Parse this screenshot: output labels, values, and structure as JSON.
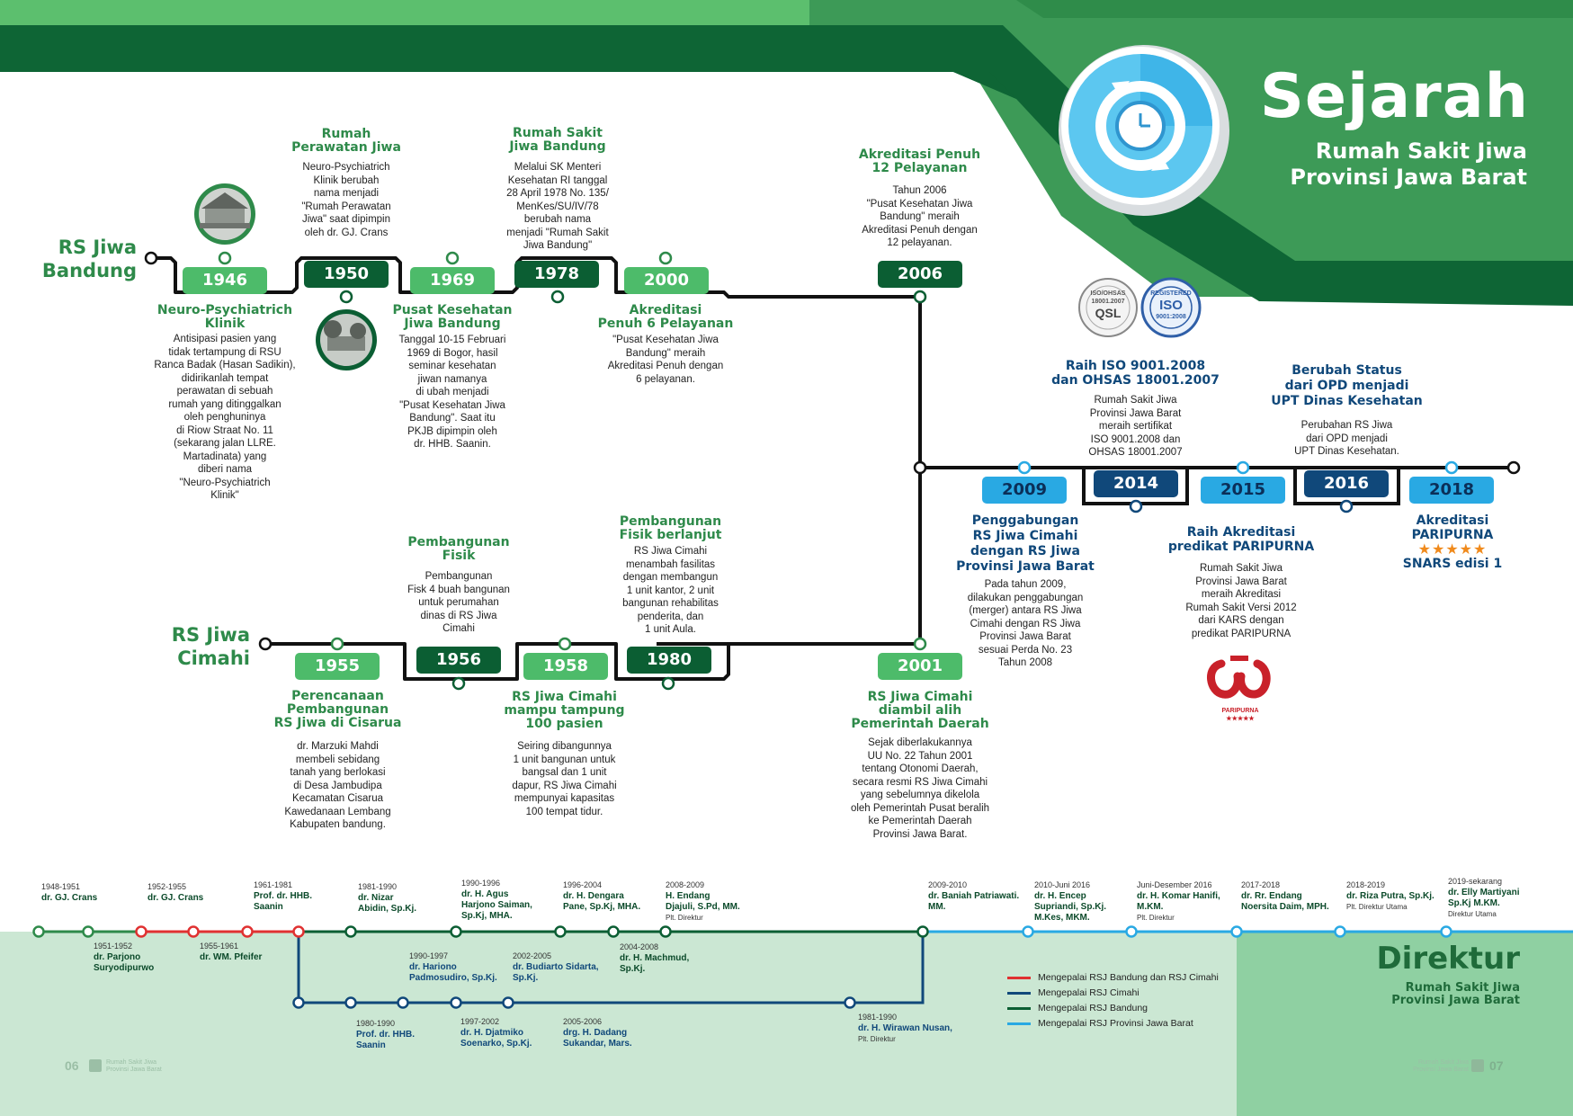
{
  "header": {
    "title": "Sejarah",
    "subtitle_1": "Rumah Sakit Jiwa",
    "subtitle_2": "Provinsi Jawa Barat"
  },
  "lines": {
    "bandung_1": "RS Jiwa",
    "bandung_2": "Bandung",
    "cimahi_1": "RS Jiwa",
    "cimahi_2": "Cimahi"
  },
  "colors": {
    "green_dark": "#0b5e33",
    "green_light": "#4dbb6a",
    "blue": "#29a9e3",
    "navy": "#10487a",
    "red": "#e03131"
  },
  "bandung_events": [
    {
      "year": "1946",
      "title_1": "Neuro-Psychiatrich",
      "title_2": "Klinik",
      "desc": [
        "Antisipasi pasien yang",
        "tidak tertampung di RSU",
        "Ranca Badak (Hasan Sadikin),",
        "didirikanlah tempat",
        "perawatan di sebuah",
        "rumah yang ditinggalkan",
        "oleh penghuninya",
        "di Riow Straat No. 11",
        "(sekarang jalan LLRE.",
        "Martadinata) yang",
        "diberi nama",
        "\"Neuro-Psychiatrich",
        "Klinik\""
      ]
    },
    {
      "year": "1950",
      "title_1": "Rumah",
      "title_2": "Perawatan Jiwa",
      "desc": [
        "Neuro-Psychiatrich",
        "Klinik berubah",
        "nama menjadi",
        "\"Rumah Perawatan",
        "Jiwa\" saat dipimpin",
        "oleh dr. GJ. Crans"
      ]
    },
    {
      "year": "1969",
      "title_1": "Pusat Kesehatan",
      "title_2": "Jiwa Bandung",
      "desc": [
        "Tanggal 10-15 Februari",
        "1969 di Bogor, hasil",
        "seminar kesehatan",
        "jiwan namanya",
        "di ubah menjadi",
        "\"Pusat Kesehatan Jiwa",
        "Bandung\". Saat itu",
        "PKJB dipimpin oleh",
        "dr. HHB. Saanin."
      ]
    },
    {
      "year": "1978",
      "title_1": "Rumah Sakit",
      "title_2": "Jiwa Bandung",
      "desc": [
        "Melalui SK Menteri",
        "Kesehatan RI tanggal",
        "28 April 1978 No. 135/",
        "MenKes/SU/IV/78",
        "berubah nama",
        "menjadi \"Rumah Sakit",
        "Jiwa Bandung\""
      ]
    },
    {
      "year": "2000",
      "title_1": "Akreditasi",
      "title_2": "Penuh 6 Pelayanan",
      "desc": [
        "\"Pusat Kesehatan Jiwa",
        "Bandung\" meraih",
        "Akreditasi Penuh dengan",
        "6 pelayanan."
      ]
    },
    {
      "year": "2006",
      "title_1": "Akreditasi Penuh",
      "title_2": "12 Pelayanan",
      "desc": [
        "Tahun 2006",
        "\"Pusat Kesehatan Jiwa",
        "Bandung\" meraih",
        "Akreditasi Penuh dengan",
        "12 pelayanan."
      ]
    }
  ],
  "cimahi_events": [
    {
      "year": "1955",
      "title_1": "Perencanaan",
      "title_2": "Pembangunan",
      "title_3": "RS Jiwa di Cisarua",
      "desc": [
        "dr. Marzuki Mahdi",
        "membeli sebidang",
        "tanah yang berlokasi",
        "di Desa Jambudipa",
        "Kecamatan Cisarua",
        "Kawedanaan Lembang",
        "Kabupaten bandung."
      ]
    },
    {
      "year": "1956",
      "title_1": "Pembangunan",
      "title_2": "Fisik",
      "desc": [
        "Pembangunan",
        "Fisk 4 buah bangunan",
        "untuk perumahan",
        "dinas di RS Jiwa",
        "Cimahi"
      ]
    },
    {
      "year": "1958",
      "title_1": "RS Jiwa Cimahi",
      "title_2": "mampu tampung",
      "title_3": "100 pasien",
      "desc": [
        "Seiring dibangunnya",
        "1 unit bangunan untuk",
        "bangsal dan 1 unit",
        "dapur, RS Jiwa Cimahi",
        "mempunyai kapasitas",
        "100 tempat tidur."
      ]
    },
    {
      "year": "1980",
      "title_1": "Pembangunan",
      "title_2": "Fisik berlanjut",
      "desc": [
        "RS Jiwa Cimahi",
        "menambah fasilitas",
        "dengan membangun",
        "1 unit kantor, 2 unit",
        "bangunan rehabilitas",
        "penderita, dan",
        "1 unit Aula."
      ]
    },
    {
      "year": "2001",
      "title_1": "RS Jiwa Cimahi",
      "title_2": "diambil alih",
      "title_3": "Pemerintah Daerah",
      "desc": [
        "Sejak diberlakukannya",
        "UU No. 22 Tahun 2001",
        "tentang Otonomi Daerah,",
        "secara resmi RS Jiwa Cimahi",
        "yang sebelumnya dikelola",
        "oleh Pemerintah Pusat beralih",
        "ke Pemerintah Daerah",
        "Provinsi Jawa Barat."
      ]
    }
  ],
  "provinsi_events": [
    {
      "year": "2009",
      "title_1": "Penggabungan",
      "title_2": "RS Jiwa Cimahi",
      "title_3": "dengan RS Jiwa",
      "title_4": "Provinsi Jawa Barat",
      "desc": [
        "Pada tahun 2009,",
        "dilakukan penggabungan",
        "(merger) antara RS Jiwa",
        "Cimahi dengan RS Jiwa",
        "Provinsi Jawa Barat",
        "sesuai Perda No. 23",
        "Tahun 2008"
      ]
    },
    {
      "year": "2014",
      "title_1": "Raih ISO 9001.2008",
      "title_2": "dan OHSAS 18001.2007",
      "desc": [
        "Rumah Sakit Jiwa",
        "Provinsi Jawa Barat",
        "meraih sertifikat",
        "ISO 9001.2008 dan",
        "OHSAS 18001.2007"
      ]
    },
    {
      "year": "2015",
      "title_1": "Raih Akreditasi",
      "title_2": "predikat PARIPURNA",
      "desc": [
        "Rumah Sakit Jiwa",
        "Provinsi Jawa Barat",
        "meraih Akreditasi",
        "Rumah Sakit Versi 2012",
        "dari KARS dengan",
        "predikat PARIPURNA"
      ]
    },
    {
      "year": "2016",
      "title_1": "Berubah Status",
      "title_2": "dari OPD menjadi",
      "title_3": "UPT Dinas Kesehatan",
      "desc": [
        "Perubahan RS Jiwa",
        "dari OPD menjadi",
        "UPT Dinas Kesehatan."
      ]
    },
    {
      "year": "2018",
      "title_1": "Akreditasi",
      "title_2": "PARIPURNA",
      "stars": "★★★★★",
      "title_3": "SNARS edisi 1"
    }
  ],
  "badges": {
    "qsl_1": "ISO/OHSAS",
    "qsl_2": "18001.2007",
    "qsl_3": "QSL",
    "iso_1": "REGISTERED",
    "iso_2": "ISO",
    "iso_3": "9001:2008",
    "paripurna": "PARIPURNA",
    "paripurna_stars": "★★★★★"
  },
  "directors_top": [
    {
      "period": "1948-1951",
      "name_1": "dr. GJ. Crans"
    },
    {
      "period": "1952-1955",
      "name_1": "dr. GJ. Crans"
    },
    {
      "period": "1961-1981",
      "name_1": "Prof. dr. HHB.",
      "name_2": "Saanin"
    },
    {
      "period": "1981-1990",
      "name_1": "dr. Nizar",
      "name_2": "Abidin, Sp.Kj."
    },
    {
      "period": "1990-1996",
      "name_1": "dr. H. Agus",
      "name_2": "Harjono Saiman,",
      "name_3": "Sp.Kj, MHA."
    },
    {
      "period": "1996-2004",
      "name_1": "dr. H. Dengara",
      "name_2": "Pane, Sp.Kj, MHA."
    },
    {
      "period": "2008-2009",
      "name_1": "H. Endang",
      "name_2": "Djajuli, S.Pd, MM.",
      "note": "Plt. Direktur"
    },
    {
      "period": "2009-2010",
      "name_1": "dr. Baniah Patriawati.",
      "name_2": "MM."
    },
    {
      "period": "2010-Juni 2016",
      "name_1": "dr. H. Encep",
      "name_2": "Supriandi, Sp.Kj.",
      "name_3": "M.Kes, MKM."
    },
    {
      "period": "Juni-Desember 2016",
      "name_1": "dr. H. Komar Hanifi,",
      "name_2": "M.KM.",
      "note": "Plt. Direktur"
    },
    {
      "period": "2017-2018",
      "name_1": "dr. Rr. Endang",
      "name_2": "Noersita Daim, MPH."
    },
    {
      "period": "2018-2019",
      "name_1": "dr. Riza Putra, Sp.Kj.",
      "note": "Plt. Direktur Utama"
    },
    {
      "period": "2019-sekarang",
      "name_1": "dr. Elly Martiyani",
      "name_2": "Sp.Kj M.KM.",
      "note": "Direktur Utama"
    }
  ],
  "directors_mid": [
    {
      "period": "1951-1952",
      "name_1": "dr. Parjono",
      "name_2": "Suryodipurwo"
    },
    {
      "period": "1955-1961",
      "name_1": "dr. WM. Pfeifer"
    },
    {
      "period": "2004-2008",
      "name_1": "dr. H. Machmud,",
      "name_2": "Sp.Kj."
    }
  ],
  "directors_cimahi_upper": [
    {
      "period": "1990-1997",
      "name_1": "dr. Hariono",
      "name_2": "Padmosudiro, Sp.Kj."
    },
    {
      "period": "2002-2005",
      "name_1": "dr. Budiarto Sidarta,",
      "name_2": "Sp.Kj."
    }
  ],
  "directors_cimahi_lower": [
    {
      "period": "1980-1990",
      "name_1": "Prof. dr. HHB.",
      "name_2": "Saanin"
    },
    {
      "period": "1997-2002",
      "name_1": "dr. H. Djatmiko",
      "name_2": "Soenarko, Sp.Kj."
    },
    {
      "period": "2005-2006",
      "name_1": "drg. H. Dadang",
      "name_2": "Sukandar, Mars."
    },
    {
      "period": "1981-1990",
      "name_1": "dr. H. Wirawan Nusan,",
      "note": "Plt. Direktur"
    }
  ],
  "legend": [
    {
      "label": "Mengepalai RSJ Bandung dan RSJ Cimahi",
      "color": "#e03131"
    },
    {
      "label": "Mengepalai RSJ Cimahi",
      "color": "#10487a"
    },
    {
      "label": "Mengepalai RSJ Bandung",
      "color": "#0b5e33"
    },
    {
      "label": "Mengepalai RSJ Provinsi Jawa Barat",
      "color": "#29a9e3"
    }
  ],
  "footer": {
    "title": "Direktur",
    "sub_1": "Rumah Sakit Jiwa",
    "sub_2": "Provinsi Jawa Barat",
    "page_left": "06",
    "page_right": "07",
    "brand_1": "Rumah Sakit Jiwa",
    "brand_2": "Provinsi Jawa Barat"
  }
}
